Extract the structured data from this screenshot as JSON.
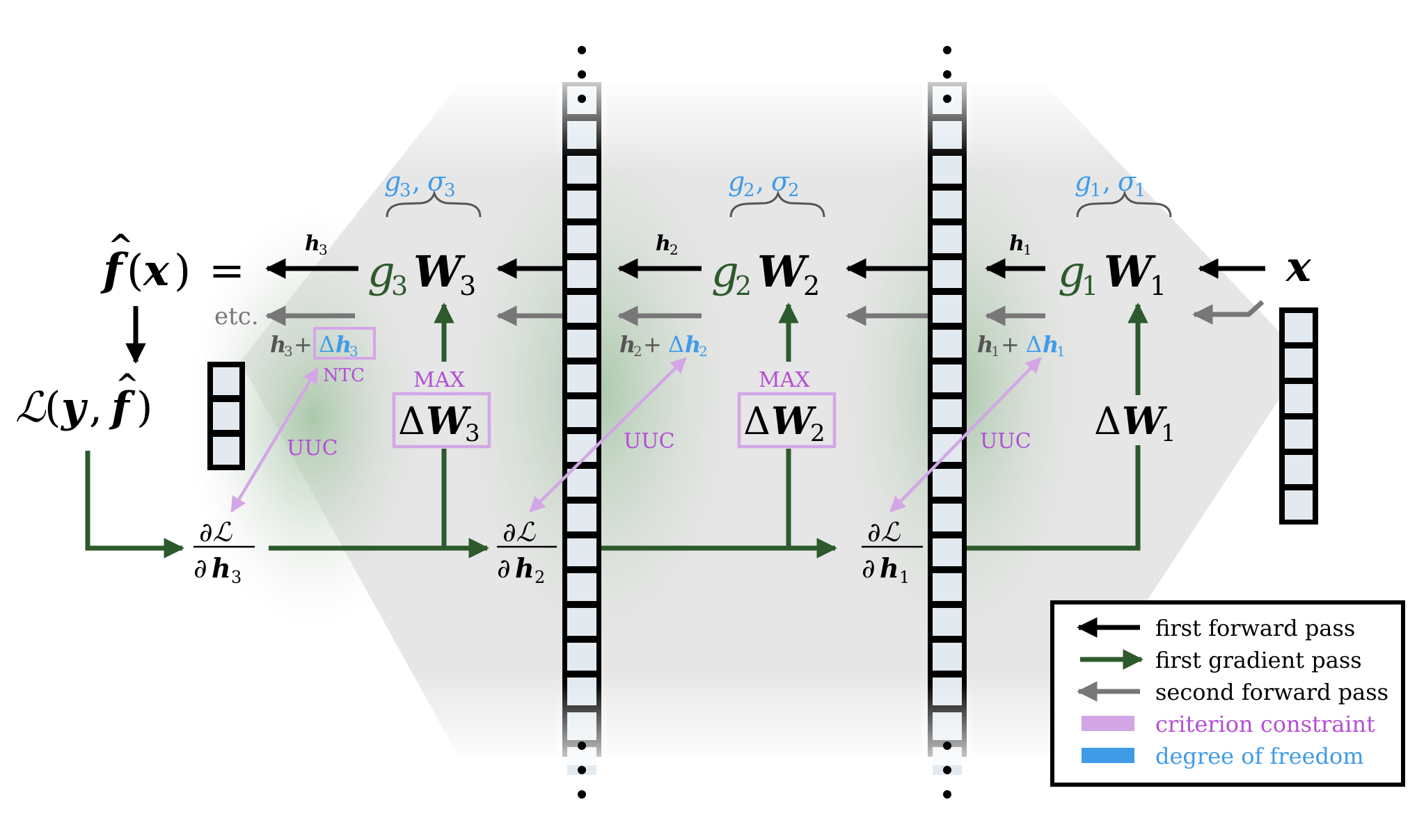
{
  "colors": {
    "black": "#000000",
    "green": "#2d5a2d",
    "gray": "#777777",
    "purple": "#b24fd4",
    "lavender": "#d3a6e6",
    "blue": "#3f9be8",
    "box_fill": "#e2eaef",
    "background_gray": "#e6e6e6",
    "background_green": "#a8c7a8"
  },
  "output": {
    "f": "f",
    "hat": "^",
    "x": "x",
    "equals": "=",
    "etc": "etc."
  },
  "loss": {
    "L": "ℒ",
    "open": "(",
    "y": "y",
    "comma": ",",
    "f": "f",
    "hat": "^",
    "close": ")"
  },
  "input": {
    "x": "x"
  },
  "layers": [
    {
      "g": "g",
      "W": "W",
      "index": "3",
      "h": "h",
      "delta": "Δ",
      "dof_g": "g",
      "dof_sigma": "σ",
      "dof_comma": ",",
      "max_label": "MAX",
      "ntc_label": "NTC",
      "uuc_label": "UUC",
      "grad_num": "∂ℒ",
      "grad_den": "∂",
      "plus": "+"
    },
    {
      "g": "g",
      "W": "W",
      "index": "2",
      "h": "h",
      "delta": "Δ",
      "dof_g": "g",
      "dof_sigma": "σ",
      "dof_comma": ",",
      "max_label": "MAX",
      "uuc_label": "UUC",
      "grad_num": "∂ℒ",
      "grad_den": "∂",
      "plus": "+"
    },
    {
      "g": "g",
      "W": "W",
      "index": "1",
      "h": "h",
      "delta": "Δ",
      "dof_g": "g",
      "dof_sigma": "σ",
      "dof_comma": ",",
      "uuc_label": "UUC",
      "grad_num": "∂ℒ",
      "grad_den": "∂",
      "plus": "+"
    }
  ],
  "legend": {
    "items": [
      {
        "label": "first forward pass",
        "kind": "black-arrow"
      },
      {
        "label": "first gradient pass",
        "kind": "green-arrow"
      },
      {
        "label": "second forward pass",
        "kind": "gray-arrow"
      },
      {
        "label": "criterion constraint",
        "kind": "lavender-swatch"
      },
      {
        "label": "degree of freedom",
        "kind": "blue-swatch"
      }
    ]
  }
}
